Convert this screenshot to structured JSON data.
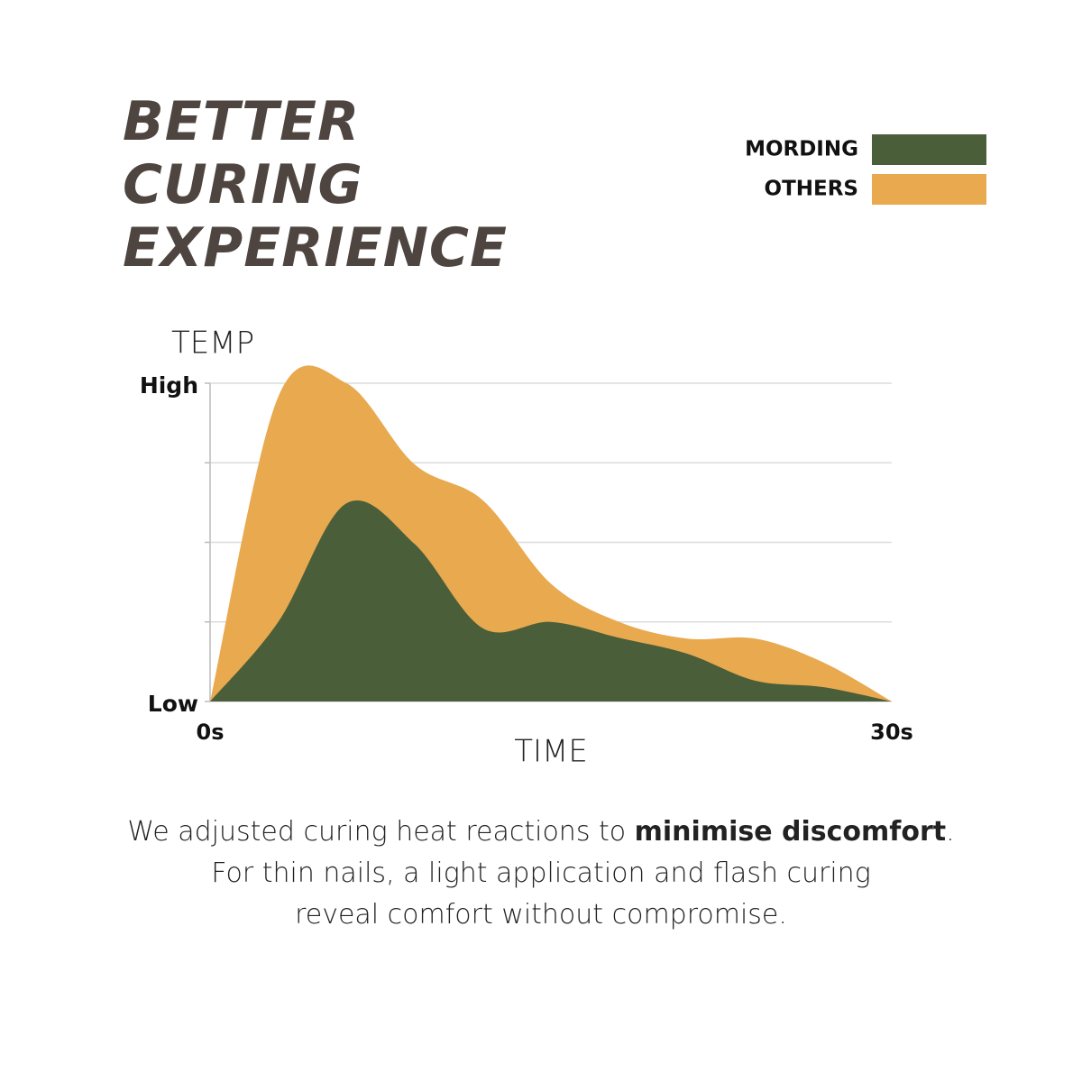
{
  "chart_data": {
    "type": "area",
    "title": "BETTER CURING EXPERIENCE",
    "y_label": "TEMP",
    "x_label": "TIME",
    "x": [
      0,
      3,
      6,
      9,
      12,
      15,
      18,
      21,
      24,
      27,
      30
    ],
    "xlim": [
      0,
      30
    ],
    "xticks": [
      {
        "value": 0,
        "label": "0s"
      },
      {
        "value": 30,
        "label": "30s"
      }
    ],
    "ylim": [
      0,
      4
    ],
    "yticks": [
      {
        "value": 0,
        "label": "Low"
      },
      {
        "value": 4,
        "label": "High"
      }
    ],
    "minor_yticks": [
      1,
      2,
      3
    ],
    "grid": true,
    "legend": "top-right",
    "series": [
      {
        "name": "OTHERS",
        "color": "#e8a94f",
        "values": [
          0,
          3.83,
          4.0,
          2.98,
          2.53,
          1.48,
          1.0,
          0.79,
          0.79,
          0.49,
          0
        ]
      },
      {
        "name": "MORDING",
        "color": "#4a5e3a",
        "values": [
          0,
          1.0,
          2.49,
          1.98,
          0.92,
          1.0,
          0.8,
          0.6,
          0.26,
          0.18,
          0
        ]
      }
    ]
  },
  "caption": [
    "We adjusted curing heat reactions to ",
    "minimise discomfort",
    ".",
    "For thin nails, a light application and flash curing",
    "reveal comfort without compromise."
  ]
}
